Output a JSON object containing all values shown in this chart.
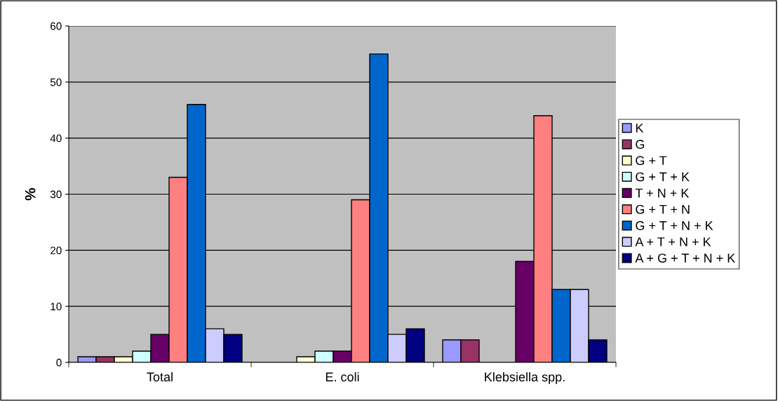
{
  "chart_data": {
    "type": "bar",
    "ylabel": "%",
    "categories": [
      "Total",
      "E. coli",
      "Klebsiella spp."
    ],
    "series": [
      {
        "name": "K",
        "color": "#9999ff",
        "values": [
          1,
          null,
          4
        ]
      },
      {
        "name": "G",
        "color": "#993366",
        "values": [
          1,
          null,
          4
        ]
      },
      {
        "name": "G + T",
        "color": "#ffffcc",
        "values": [
          1,
          1,
          null
        ]
      },
      {
        "name": "G + T + K",
        "color": "#ccffff",
        "values": [
          2,
          2,
          null
        ]
      },
      {
        "name": "T + N + K",
        "color": "#660066",
        "values": [
          5,
          2,
          18
        ]
      },
      {
        "name": "G + T + N",
        "color": "#ff8080",
        "values": [
          33,
          29,
          44
        ]
      },
      {
        "name": "G + T + N + K",
        "color": "#0066cc",
        "values": [
          46,
          55,
          13
        ]
      },
      {
        "name": "A + T + N + K",
        "color": "#ccccff",
        "values": [
          6,
          5,
          13
        ]
      },
      {
        "name": "A + G + T + N + K",
        "color": "#000080",
        "values": [
          5,
          6,
          4
        ]
      }
    ],
    "ylim": [
      0,
      60
    ],
    "yticks": [
      0,
      10,
      20,
      30,
      40,
      50,
      60
    ],
    "grid": "y",
    "legend": "right"
  }
}
